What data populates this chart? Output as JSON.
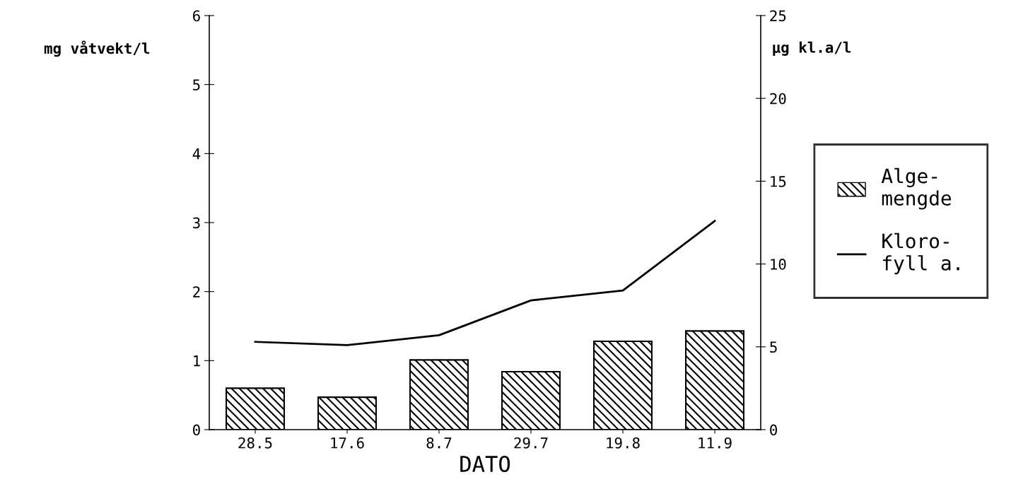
{
  "chart_data": {
    "type": "bar",
    "categories": [
      "28.5",
      "17.6",
      "8.7",
      "29.7",
      "19.8",
      "11.9"
    ],
    "xlabel": "DATO",
    "ylabel": "mg våtvekt/l",
    "y2label": "µg kl.a/l",
    "series": [
      {
        "name": "Alge-\nmengde",
        "color": "#000000",
        "values": [
          0.6,
          0.47,
          1.01,
          0.84,
          1.28,
          1.43
        ]
      },
      {
        "name": "Kloro-\nfyll a.",
        "type": "line",
        "axis": "y2",
        "color": "#000000",
        "values": [
          5.3,
          5.1,
          5.7,
          7.8,
          8.4,
          12.6
        ]
      }
    ],
    "ylim": [
      0,
      6
    ],
    "yticks": [
      0,
      1,
      2,
      3,
      4,
      5,
      6
    ],
    "y2lim": [
      0,
      25
    ],
    "y2ticks": [
      0,
      5,
      10,
      15,
      20,
      25
    ],
    "grid": false,
    "legend": "right",
    "marker": "none",
    "line_style": "solid"
  }
}
